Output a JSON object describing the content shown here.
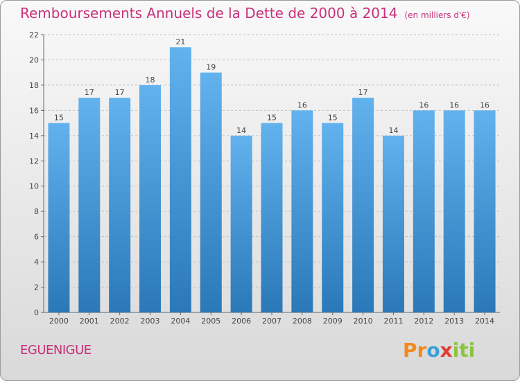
{
  "header": {
    "title": "Remboursements Annuels de la Dette de 2000 à 2014",
    "subtitle": "(en milliers d'€)"
  },
  "footer": {
    "commune": "EGUENIGUE",
    "logo_text": "Proxiti"
  },
  "colors": {
    "title": "#c8307a",
    "bar_top": "#62b2ee",
    "bar_bottom": "#2a78b8",
    "grid": "#c0c0c0"
  },
  "chart_data": {
    "type": "bar",
    "categories": [
      "2000",
      "2001",
      "2002",
      "2003",
      "2004",
      "2005",
      "2006",
      "2007",
      "2008",
      "2009",
      "2010",
      "2011",
      "2012",
      "2013",
      "2014"
    ],
    "values": [
      15,
      17,
      17,
      18,
      21,
      19,
      14,
      15,
      16,
      15,
      17,
      14,
      16,
      16,
      16
    ],
    "ylim": [
      0,
      22
    ],
    "yticks": [
      0,
      2,
      4,
      6,
      8,
      10,
      12,
      14,
      16,
      18,
      20,
      22
    ],
    "grid": true,
    "data_labels": true
  }
}
